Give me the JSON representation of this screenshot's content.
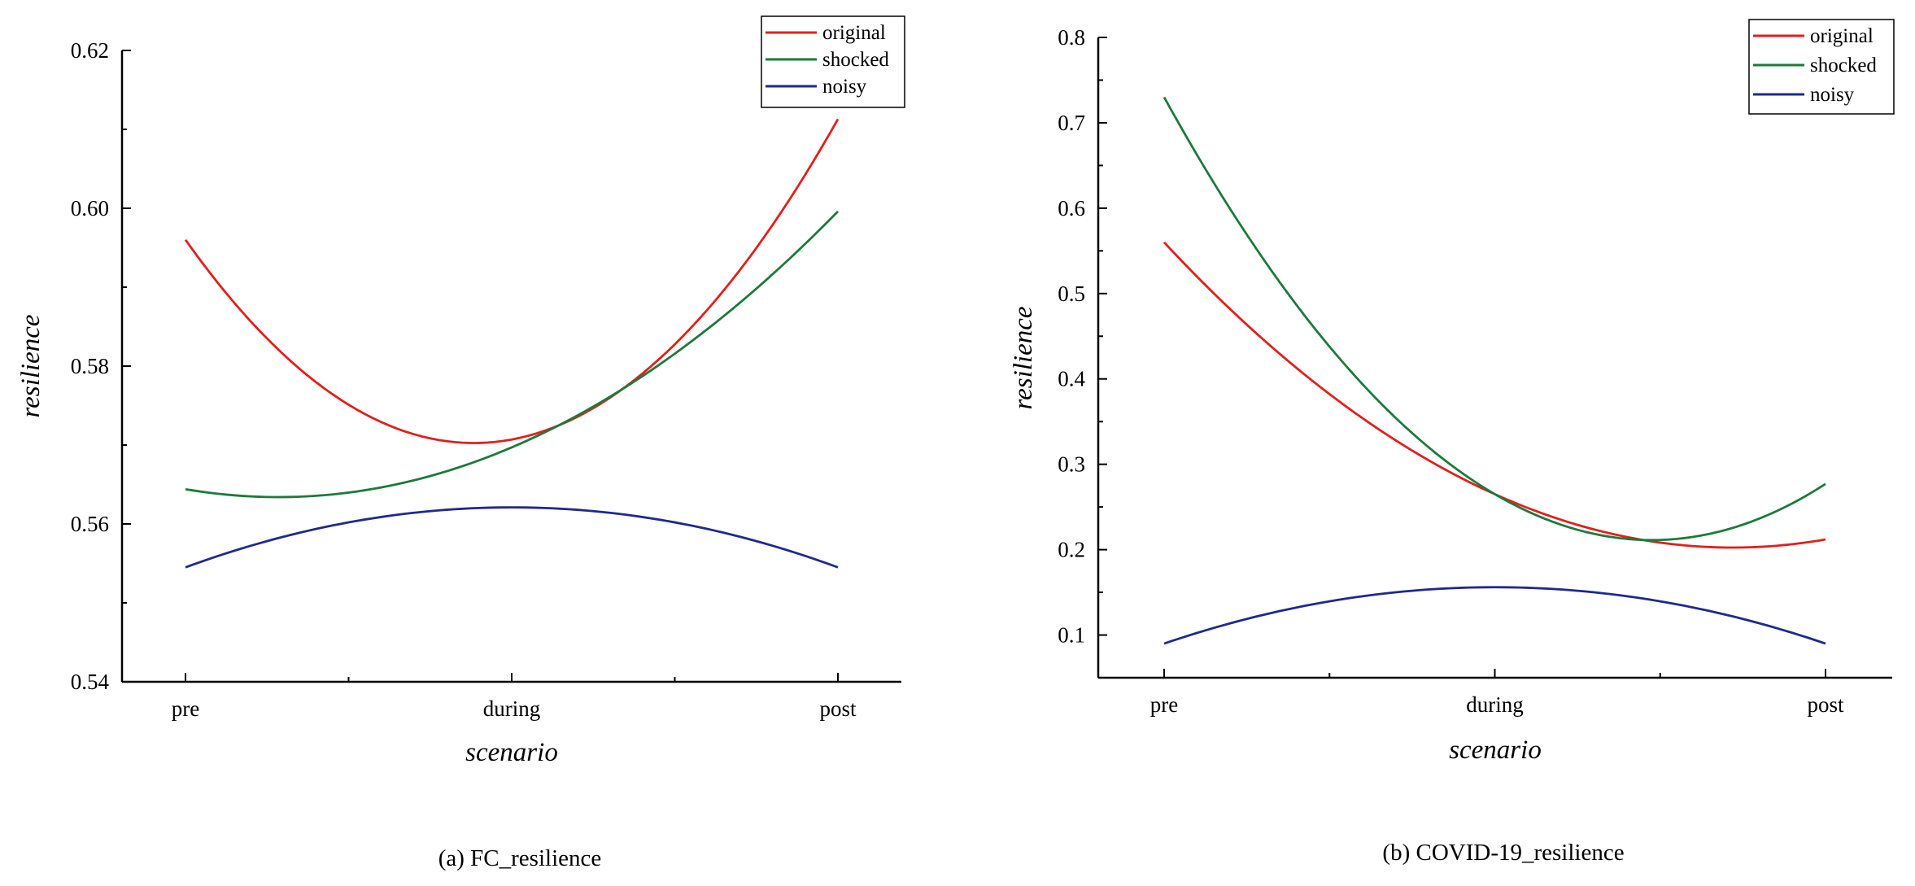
{
  "chart_data": [
    {
      "type": "line",
      "title": "",
      "caption": "(a) FC_resilience",
      "xlabel": "scenario",
      "ylabel": "resilience",
      "categories": [
        "pre",
        "during",
        "post"
      ],
      "yticks": [
        "0.54",
        "0.56",
        "0.58",
        "0.60",
        "0.62"
      ],
      "ylim": [
        0.54,
        0.62
      ],
      "grid": false,
      "legend_position": "top-right",
      "series": [
        {
          "name": "original",
          "color": "#e0201c",
          "values": [
            0.596,
            0.5707,
            0.6113
          ]
        },
        {
          "name": "shocked",
          "color": "#1d7a3c",
          "values": [
            0.5644,
            0.5697,
            0.5996
          ]
        },
        {
          "name": "noisy",
          "color": "#1f2a8c",
          "values": [
            0.5545,
            0.5621,
            0.5545
          ]
        }
      ]
    },
    {
      "type": "line",
      "title": "",
      "caption": "(b) COVID-19_resilience",
      "xlabel": "scenario",
      "ylabel": "resilience",
      "categories": [
        "pre",
        "during",
        "post"
      ],
      "yticks": [
        "0.1",
        "0.2",
        "0.3",
        "0.4",
        "0.5",
        "0.6",
        "0.7",
        "0.8"
      ],
      "ylim": [
        0.05,
        0.8
      ],
      "grid": false,
      "legend_position": "top-right",
      "series": [
        {
          "name": "original",
          "color": "#e0201c",
          "values": [
            0.56,
            0.265,
            0.212
          ]
        },
        {
          "name": "shocked",
          "color": "#1d7a3c",
          "values": [
            0.73,
            0.265,
            0.277
          ]
        },
        {
          "name": "noisy",
          "color": "#1f2a8c",
          "values": [
            0.09,
            0.156,
            0.09
          ]
        }
      ]
    }
  ]
}
